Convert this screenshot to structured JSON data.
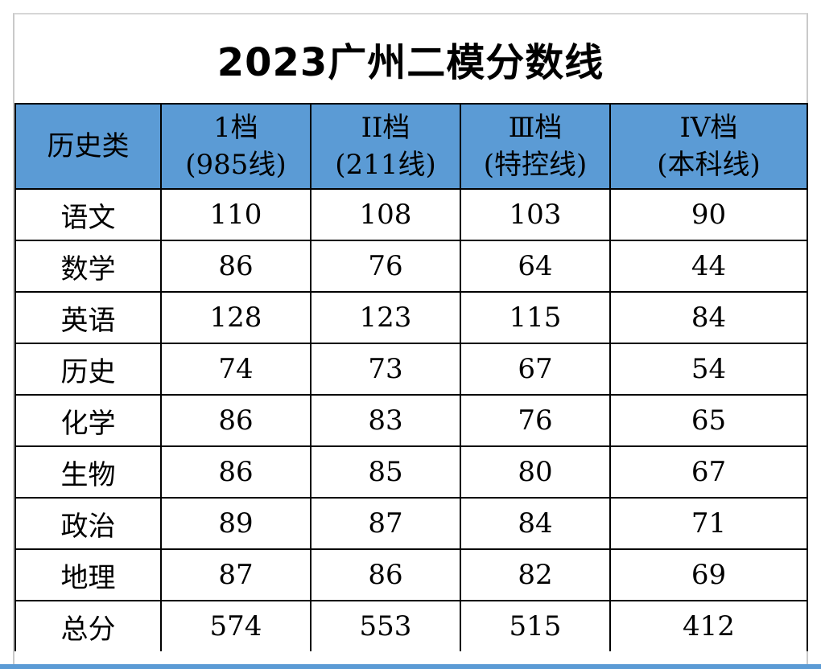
{
  "title": "2023广州二模分数线",
  "header": {
    "category": "历史类",
    "columns": [
      {
        "name": "1档",
        "sub": "(985线)"
      },
      {
        "name": "II档",
        "sub": "(211线)"
      },
      {
        "name": "Ⅲ档",
        "sub": "(特控线)"
      },
      {
        "name": "IV档",
        "sub": "(本科线)"
      }
    ]
  },
  "rows": [
    {
      "subject": "语文",
      "values": [
        "110",
        "108",
        "103",
        "90"
      ]
    },
    {
      "subject": "数学",
      "values": [
        "86",
        "76",
        "64",
        "44"
      ]
    },
    {
      "subject": "英语",
      "values": [
        "128",
        "123",
        "115",
        "84"
      ]
    },
    {
      "subject": "历史",
      "values": [
        "74",
        "73",
        "67",
        "54"
      ]
    },
    {
      "subject": "化学",
      "values": [
        "86",
        "83",
        "76",
        "65"
      ]
    },
    {
      "subject": "生物",
      "values": [
        "86",
        "85",
        "80",
        "67"
      ]
    },
    {
      "subject": "政治",
      "values": [
        "89",
        "87",
        "84",
        "71"
      ]
    },
    {
      "subject": "地理",
      "values": [
        "87",
        "86",
        "82",
        "69"
      ]
    },
    {
      "subject": "总分",
      "values": [
        "574",
        "553",
        "515",
        "412"
      ]
    }
  ],
  "colors": {
    "header_bg": "#5b9bd5",
    "border": "#000000",
    "text": "#000000"
  }
}
